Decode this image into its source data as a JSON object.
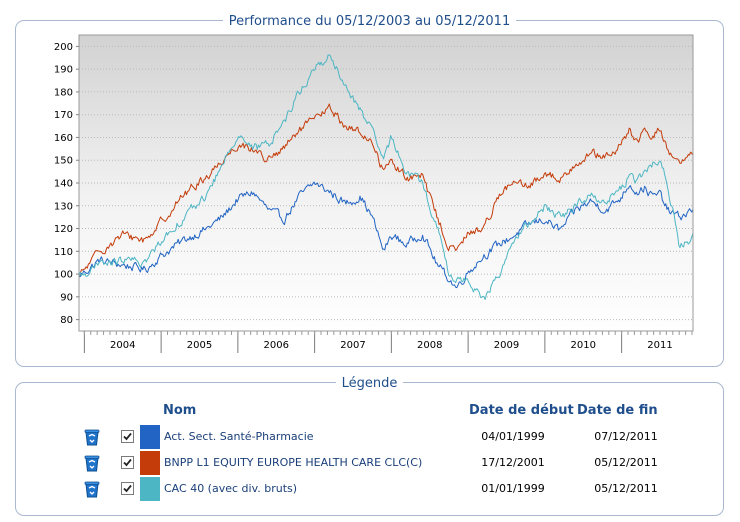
{
  "chart_panel": {
    "title": "Performance du 05/12/2003 au 05/12/2011"
  },
  "legend_panel": {
    "title": "Légende",
    "headers": {
      "name": "Nom",
      "start": "Date de début",
      "end": "Date de fin"
    },
    "rows": [
      {
        "name": "Act. Sect. Santé-Pharmacie",
        "start": "04/01/1999",
        "end": "07/12/2011",
        "color": "#2164c4",
        "checked": true
      },
      {
        "name": "BNPP L1 EQUITY EUROPE HEALTH CARE CLC(C)",
        "start": "17/12/2001",
        "end": "05/12/2011",
        "color": "#c43c0a",
        "checked": true
      },
      {
        "name": "CAC 40 (avec div. bruts)",
        "start": "01/01/1999",
        "end": "05/12/2011",
        "color": "#4db6c4",
        "checked": true
      }
    ]
  },
  "chart_data": {
    "type": "line",
    "title": "Performance du 05/12/2003 au 05/12/2011",
    "xlabel": "",
    "ylabel": "",
    "x_range": [
      2003.93,
      2011.93
    ],
    "ylim": [
      75,
      205
    ],
    "yticks": [
      80,
      90,
      100,
      110,
      120,
      130,
      140,
      150,
      160,
      170,
      180,
      190,
      200
    ],
    "ytick_labels": [
      "80",
      "90",
      "100",
      "110",
      "120",
      "130",
      "140",
      "150",
      "160",
      "170",
      "180",
      "190",
      "200"
    ],
    "xtick_labels": [
      "2004",
      "2005",
      "2006",
      "2007",
      "2008",
      "2009",
      "2010",
      "2011"
    ],
    "grid": true,
    "legend": "separate panel below",
    "series": [
      {
        "name": "Act. Sect. Santé-Pharmacie",
        "color": "#2164c4",
        "x": [
          2003.93,
          2004.2,
          2004.5,
          2004.8,
          2005.0,
          2005.3,
          2005.6,
          2005.8,
          2006.0,
          2006.2,
          2006.4,
          2006.6,
          2006.8,
          2007.0,
          2007.2,
          2007.4,
          2007.6,
          2007.75,
          2007.9,
          2008.0,
          2008.2,
          2008.4,
          2008.6,
          2008.75,
          2008.85,
          2009.0,
          2009.2,
          2009.4,
          2009.6,
          2009.8,
          2010.0,
          2010.2,
          2010.4,
          2010.6,
          2010.8,
          2011.0,
          2011.1,
          2011.2,
          2011.3,
          2011.4,
          2011.5,
          2011.6,
          2011.75,
          2011.93
        ],
        "y": [
          99,
          106,
          104,
          102,
          108,
          115,
          120,
          125,
          133,
          136,
          128,
          124,
          134,
          140,
          136,
          131,
          134,
          125,
          110,
          117,
          113,
          118,
          104,
          98,
          94,
          101,
          108,
          113,
          117,
          122,
          124,
          119,
          128,
          132,
          128,
          134,
          140,
          136,
          138,
          134,
          135,
          128,
          125,
          128
        ]
      },
      {
        "name": "BNPP L1 EQUITY EUROPE HEALTH CARE CLC(C)",
        "color": "#c43c0a",
        "x": [
          2003.93,
          2004.2,
          2004.5,
          2004.8,
          2005.0,
          2005.3,
          2005.6,
          2005.8,
          2006.0,
          2006.2,
          2006.4,
          2006.6,
          2006.8,
          2007.0,
          2007.2,
          2007.4,
          2007.6,
          2007.75,
          2007.9,
          2008.0,
          2008.2,
          2008.4,
          2008.6,
          2008.75,
          2008.85,
          2009.0,
          2009.2,
          2009.4,
          2009.6,
          2009.8,
          2010.0,
          2010.2,
          2010.4,
          2010.6,
          2010.8,
          2011.0,
          2011.1,
          2011.2,
          2011.3,
          2011.4,
          2011.5,
          2011.6,
          2011.75,
          2011.93
        ],
        "y": [
          99,
          110,
          117,
          115,
          123,
          135,
          143,
          150,
          157,
          155,
          150,
          155,
          163,
          168,
          173,
          165,
          162,
          158,
          145,
          150,
          142,
          143,
          125,
          112,
          110,
          118,
          120,
          135,
          140,
          138,
          145,
          141,
          149,
          153,
          151,
          157,
          163,
          158,
          162,
          160,
          164,
          155,
          148,
          152
        ]
      },
      {
        "name": "CAC 40 (avec div. bruts)",
        "color": "#4db6c4",
        "x": [
          2003.93,
          2004.2,
          2004.5,
          2004.8,
          2005.0,
          2005.3,
          2005.6,
          2005.8,
          2006.0,
          2006.2,
          2006.4,
          2006.6,
          2006.8,
          2007.0,
          2007.2,
          2007.4,
          2007.6,
          2007.75,
          2007.9,
          2008.0,
          2008.2,
          2008.4,
          2008.6,
          2008.75,
          2008.85,
          2009.0,
          2009.2,
          2009.4,
          2009.6,
          2009.8,
          2010.0,
          2010.2,
          2010.4,
          2010.6,
          2010.8,
          2011.0,
          2011.1,
          2011.2,
          2011.3,
          2011.4,
          2011.5,
          2011.6,
          2011.75,
          2011.93
        ],
        "y": [
          99,
          104,
          106,
          105,
          115,
          125,
          135,
          148,
          162,
          155,
          157,
          167,
          180,
          190,
          196,
          182,
          172,
          162,
          150,
          160,
          145,
          140,
          120,
          100,
          97,
          98,
          88,
          100,
          115,
          122,
          130,
          125,
          130,
          135,
          132,
          138,
          143,
          140,
          145,
          148,
          150,
          140,
          112,
          116
        ]
      }
    ]
  }
}
